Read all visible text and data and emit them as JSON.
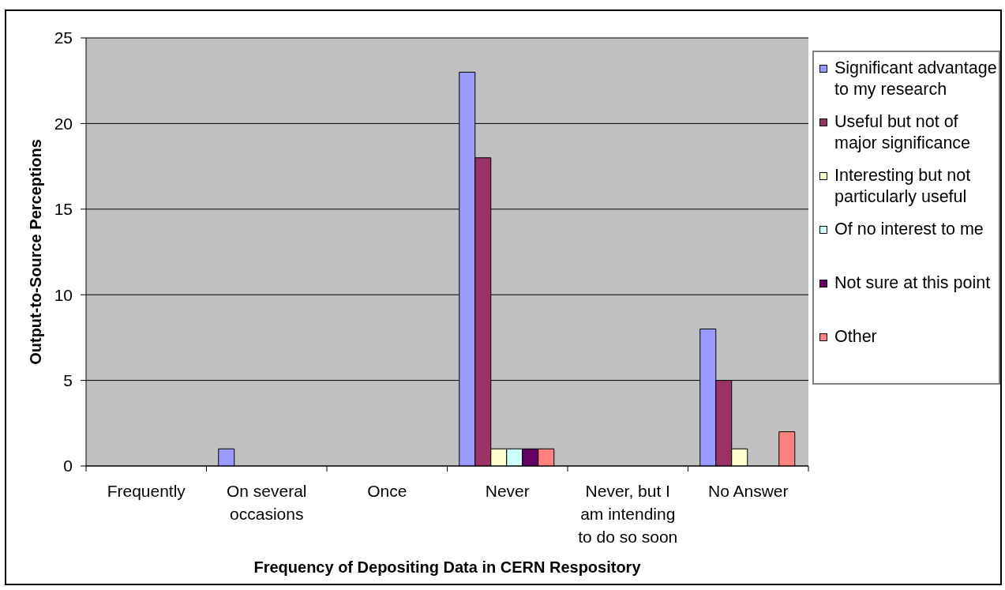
{
  "chart_data": {
    "type": "bar",
    "xlabel": "Frequency of Depositing Data in CERN Respository",
    "ylabel": "Output-to-Source Perceptions",
    "categories": [
      "Frequently",
      "On several occasions",
      "Once",
      "Never",
      "Never, but I am intending to do so soon",
      "No Answer"
    ],
    "series": [
      {
        "name": "Significant advantage to my research",
        "color": "#9999ff",
        "values": [
          0,
          1,
          0,
          23,
          0,
          8
        ]
      },
      {
        "name": "Useful but not of major significance",
        "color": "#993366",
        "values": [
          0,
          0,
          0,
          18,
          0,
          5
        ]
      },
      {
        "name": "Interesting but not particularly useful",
        "color": "#ffffcc",
        "values": [
          0,
          0,
          0,
          1,
          0,
          1
        ]
      },
      {
        "name": "Of no interest to me",
        "color": "#ccffff",
        "values": [
          0,
          0,
          0,
          1,
          0,
          0
        ]
      },
      {
        "name": "Not sure at this point",
        "color": "#660066",
        "values": [
          0,
          0,
          0,
          1,
          0,
          0
        ]
      },
      {
        "name": "Other",
        "color": "#ff8080",
        "values": [
          0,
          0,
          0,
          1,
          0,
          2
        ]
      }
    ],
    "ylim": [
      0,
      25
    ],
    "yticks": [
      0,
      5,
      10,
      15,
      20,
      25
    ],
    "grid": "y",
    "legend": "right"
  }
}
